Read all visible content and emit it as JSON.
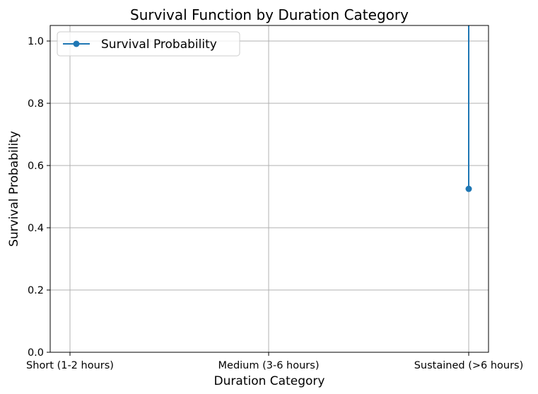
{
  "chart_data": {
    "type": "line",
    "title": "Survival Function by Duration Category",
    "xlabel": "Duration Category",
    "ylabel": "Survival Probability",
    "categories": [
      "Short (1-2 hours)",
      "Medium (3-6 hours)",
      "Sustained (>6 hours)"
    ],
    "series": [
      {
        "name": "Survival Probability",
        "color": "#1f77b4",
        "points": [
          {
            "x": "Sustained (>6 hours)",
            "y": 1.05
          },
          {
            "x": "Sustained (>6 hours)",
            "y": 0.525
          }
        ],
        "markers": [
          {
            "x": "Sustained (>6 hours)",
            "y": 0.525
          }
        ]
      }
    ],
    "ylim": [
      0.0,
      1.05
    ],
    "yticks": [
      "0.0",
      "0.2",
      "0.4",
      "0.6",
      "0.8",
      "1.0"
    ],
    "grid": true,
    "legend": "top-left"
  }
}
